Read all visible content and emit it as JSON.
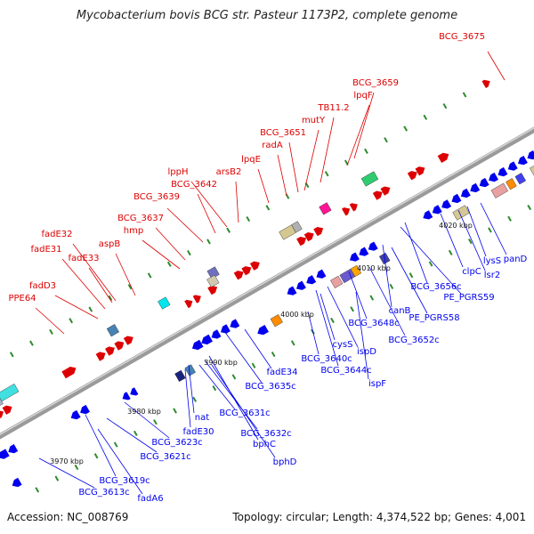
{
  "title": "Mycobacterium bovis BCG str. Pasteur 1173P2, complete genome",
  "accession": "Accession: NC_008769",
  "topology": "Topology: circular; Length: 4,374,522 bp; Genes: 4,001",
  "colors": {
    "forward": "#dd0000",
    "reverse": "#0000ee",
    "backbone": "#777777",
    "tick": "#2e8b2e"
  },
  "scale_labels": [
    "3970 kbp",
    "3980 kbp",
    "3990 kbp",
    "4000 kbp",
    "4010 kbp",
    "4020 kbp"
  ],
  "forward_labels": [
    "BCG_3675",
    "BCG_3659",
    "lpqF",
    "TB11.2",
    "mutY",
    "BCG_3651",
    "radA",
    "lpqE",
    "arsB2",
    "lppH",
    "BCG_3642",
    "BCG_3639",
    "BCG_3637",
    "hmp",
    "aspB",
    "fadE32",
    "fadE31",
    "fadE33",
    "fadD3",
    "PPE64"
  ],
  "reverse_labels": [
    "panD",
    "lysS",
    "lsr2",
    "clpC",
    "BCG_3656c",
    "PE_PGRS59",
    "canB",
    "PE_PGRS58",
    "BCG_3652c",
    "BCG_3648c",
    "cysS",
    "ispD",
    "BCG_3640c",
    "BCG_3644c",
    "ispF",
    "fadE34",
    "BCG_3635c",
    "nat",
    "BCG_3631c",
    "fadE30",
    "BCG_3632c",
    "bphC",
    "bphD",
    "BCG_3623c",
    "BCG_3621c",
    "BCG_3619c",
    "BCG_3613c",
    "fadA6"
  ]
}
